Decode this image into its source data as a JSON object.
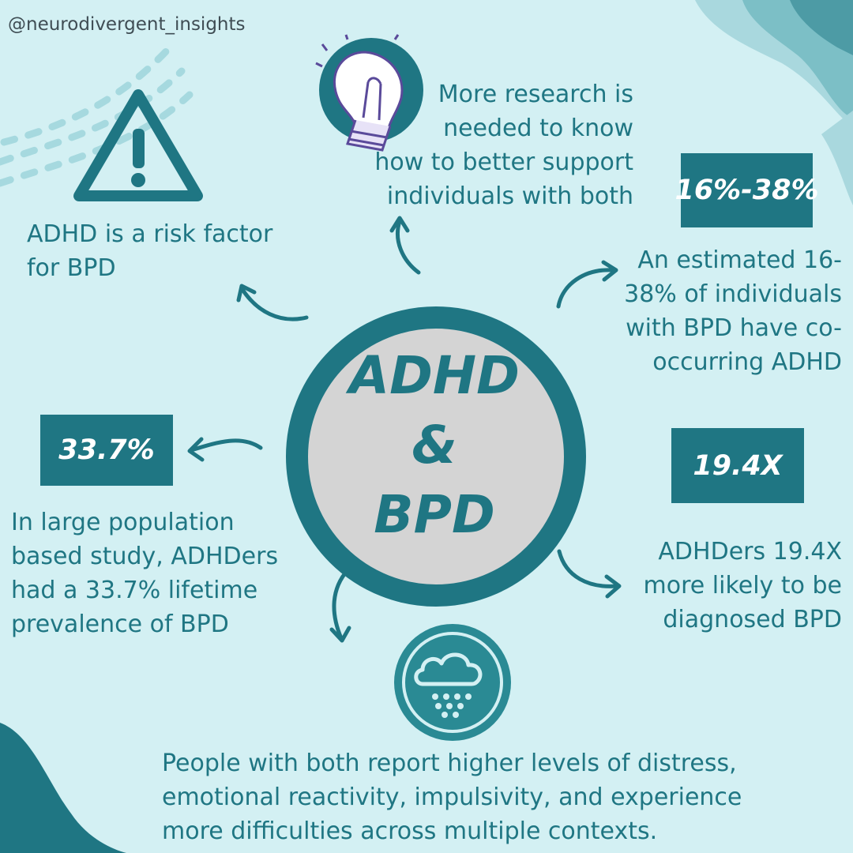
{
  "colors": {
    "background": "#d3f0f3",
    "teal": "#1f7683",
    "teal_light": "#7cbfc6",
    "circle_fill": "#d4d4d4",
    "badge_text": "#ffffff"
  },
  "handle": "@neurodivergent_insights",
  "center": {
    "line1": "ADHD",
    "line2": "&",
    "line3": "BPD"
  },
  "risk_factor": {
    "icon": "warning-icon",
    "line1": "ADHD is a risk factor",
    "line2": "for BPD"
  },
  "research": {
    "icon": "lightbulb-icon",
    "line1": "More research is",
    "line2": "needed to know",
    "line3": "how to better support",
    "line4": "individuals with both"
  },
  "cooccurring": {
    "badge": "16%-38%",
    "line1": "An estimated 16-",
    "line2": "38% of individuals",
    "line3": "with BPD have co-",
    "line4": "occurring ADHD"
  },
  "prevalence": {
    "badge": "33.7%",
    "line1": "In large population",
    "line2": "based study, ADHDers",
    "line3": "had a 33.7%  lifetime",
    "line4": "prevalence of BPD"
  },
  "likelihood": {
    "badge": "19.4X",
    "line1": "ADHDers 19.4X",
    "line2": "more likely to be",
    "line3": "diagnosed BPD"
  },
  "distress": {
    "icon": "rain-cloud-icon",
    "line1": "People with both report higher levels of distress,",
    "line2": "emotional reactivity, impulsivity, and experience",
    "line3": "more difficulties across multiple contexts."
  }
}
